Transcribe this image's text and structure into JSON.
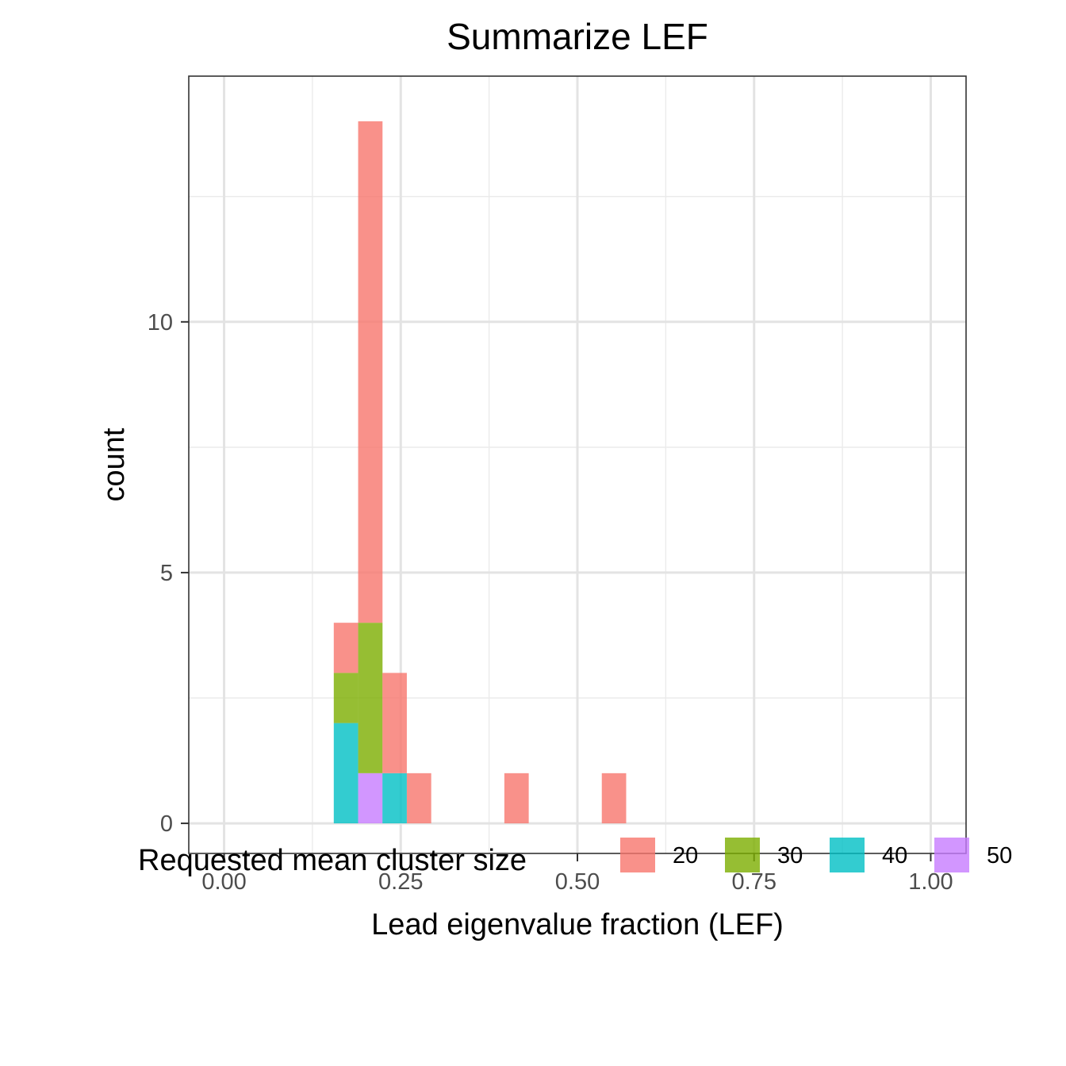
{
  "chart_data": {
    "type": "bar",
    "subtype": "stacked-histogram",
    "title": "Summarize LEF",
    "xlabel": "Lead eigenvalue fraction (LEF)",
    "ylabel": "count",
    "xlim": [
      -0.05,
      1.05
    ],
    "ylim": [
      -0.6,
      14.9
    ],
    "x_ticks": [
      0.0,
      0.25,
      0.5,
      0.75,
      1.0
    ],
    "x_tick_labels": [
      "0.00",
      "0.25",
      "0.50",
      "0.75",
      "1.00"
    ],
    "y_ticks": [
      0,
      5,
      10
    ],
    "y_tick_labels": [
      "0",
      "5",
      "10"
    ],
    "grid": true,
    "bin_width": 0.0345,
    "bins": [
      0.1552,
      0.1897,
      0.2241,
      0.2586,
      0.3966,
      0.5345
    ],
    "series": [
      {
        "name": "20",
        "color": "#F8766D",
        "values": [
          1,
          10,
          2,
          1,
          1,
          1
        ]
      },
      {
        "name": "30",
        "color": "#7CAE00",
        "values": [
          1,
          3,
          0,
          0,
          0,
          0
        ]
      },
      {
        "name": "40",
        "color": "#00BFC4",
        "values": [
          2,
          0,
          1,
          0,
          0,
          0
        ]
      },
      {
        "name": "50",
        "color": "#C77CFF",
        "values": [
          0,
          1,
          0,
          0,
          0,
          0
        ]
      }
    ],
    "stack_order": [
      "50",
      "40",
      "30",
      "20"
    ],
    "bar_opacity": 0.8,
    "legend": {
      "title": "Requested mean cluster size",
      "position": "bottom"
    }
  }
}
